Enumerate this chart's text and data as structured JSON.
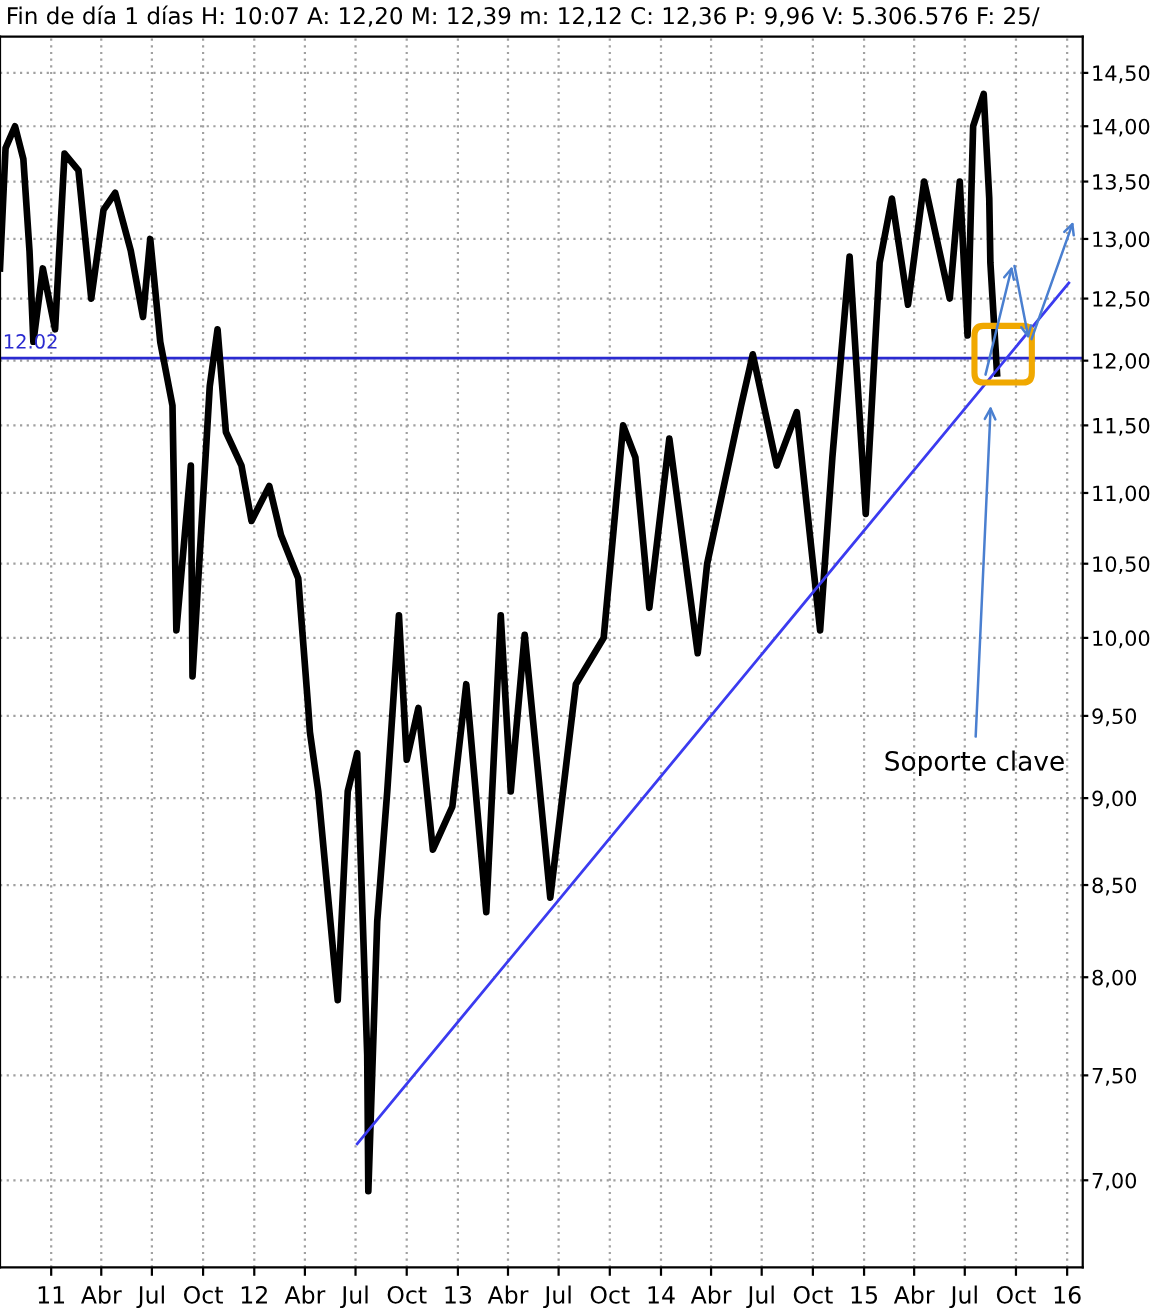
{
  "chart_data": {
    "type": "line",
    "title": "Fin de día 1 días H: 10:07 A: 12,20 M: 12,39 m: 12,12 C: 12,36 P: 9,96 V: 5.306.576 F: 25/",
    "series": [
      {
        "color": "#000000",
        "x": [
          "2010-10-01",
          "2010-10-11",
          "2010-10-28",
          "2010-11-12",
          "2010-11-23",
          "2010-11-30",
          "2010-12-17",
          "2011-01-08",
          "2011-01-25",
          "2011-02-19",
          "2011-03-14",
          "2011-04-05",
          "2011-04-26",
          "2011-05-24",
          "2011-06-15",
          "2011-06-28",
          "2011-07-16",
          "2011-08-07",
          "2011-08-14",
          "2011-09-09",
          "2011-09-12",
          "2011-10-13",
          "2011-10-27",
          "2011-11-11",
          "2011-12-09",
          "2011-12-27",
          "2012-01-28",
          "2012-02-18",
          "2012-03-20",
          "2012-04-07",
          "2012-04-10",
          "2012-04-25",
          "2012-05-30",
          "2012-06-17",
          "2012-07-04",
          "2012-07-22",
          "2012-07-24",
          "2012-08-09",
          "2012-08-27",
          "2012-09-17",
          "2012-10-01",
          "2012-10-22",
          "2012-11-17",
          "2012-12-22",
          "2013-01-16",
          "2013-02-21",
          "2013-03-19",
          "2013-04-06",
          "2013-05-01",
          "2013-06-16",
          "2013-08-01",
          "2013-09-20",
          "2013-10-25",
          "2013-11-16",
          "2013-12-11",
          "2014-01-16",
          "2014-03-08",
          "2014-03-25",
          "2014-05-25",
          "2014-06-15",
          "2014-07-28",
          "2014-09-02",
          "2014-10-14",
          "2014-11-05",
          "2014-12-06",
          "2015-01-04",
          "2015-01-29",
          "2015-02-20",
          "2015-03-21",
          "2015-04-19",
          "2015-06-04",
          "2015-06-22",
          "2015-07-06",
          "2015-07-16",
          "2015-08-04",
          "2015-08-14",
          "2015-08-16",
          "2015-08-28"
        ],
        "values": [
          12.75,
          13.8,
          14.0,
          13.7,
          12.9,
          12.15,
          12.75,
          12.25,
          13.75,
          13.6,
          12.5,
          13.25,
          13.4,
          12.9,
          12.35,
          13.0,
          12.15,
          11.65,
          10.05,
          11.2,
          9.75,
          11.8,
          12.25,
          11.45,
          11.2,
          10.8,
          11.05,
          10.7,
          10.4,
          9.55,
          9.4,
          9.04,
          7.88,
          9.04,
          9.27,
          7.6,
          6.95,
          8.3,
          9.04,
          10.15,
          9.23,
          9.55,
          8.7,
          8.95,
          9.7,
          8.35,
          10.15,
          9.04,
          10.02,
          8.43,
          9.7,
          10.0,
          11.5,
          11.26,
          10.2,
          11.4,
          9.9,
          10.5,
          11.65,
          12.05,
          11.2,
          11.6,
          10.05,
          11.26,
          12.85,
          10.85,
          12.8,
          13.35,
          12.45,
          13.5,
          12.5,
          13.5,
          12.2,
          14.0,
          14.3,
          13.35,
          12.8,
          11.9
        ]
      },
      {
        "color": "#3b3bf0",
        "x": [
          "2012-07-04",
          "2016-01-04"
        ],
        "values": [
          7.17,
          12.63
        ]
      }
    ],
    "log": "y",
    "ylim": [
      6.61,
      14.85
    ],
    "yticks": [
      {
        "value": 7.0,
        "label": "7,00"
      },
      {
        "value": 7.5,
        "label": "7,50"
      },
      {
        "value": 8.0,
        "label": "8,00"
      },
      {
        "value": 8.5,
        "label": "8,50"
      },
      {
        "value": 9.0,
        "label": "9,00"
      },
      {
        "value": 9.5,
        "label": "9,50"
      },
      {
        "value": 10.0,
        "label": "10,00"
      },
      {
        "value": 10.5,
        "label": "10,50"
      },
      {
        "value": 11.0,
        "label": "11,00"
      },
      {
        "value": 11.5,
        "label": "11,50"
      },
      {
        "value": 12.0,
        "label": "12,00"
      },
      {
        "value": 12.5,
        "label": "12,50"
      },
      {
        "value": 13.0,
        "label": "13,00"
      },
      {
        "value": 13.5,
        "label": "13,50"
      },
      {
        "value": 14.0,
        "label": "14,00"
      },
      {
        "value": 14.5,
        "label": "14,50"
      }
    ],
    "xlim": [
      "2010-10-01",
      "2016-01-29"
    ],
    "xticks": [
      {
        "value": "2011-01-01",
        "label": "11"
      },
      {
        "value": "2011-04-01",
        "label": "Abr"
      },
      {
        "value": "2011-07-01",
        "label": "Jul"
      },
      {
        "value": "2011-10-01",
        "label": "Oct"
      },
      {
        "value": "2012-01-01",
        "label": "12"
      },
      {
        "value": "2012-04-01",
        "label": "Abr"
      },
      {
        "value": "2012-07-01",
        "label": "Jul"
      },
      {
        "value": "2012-10-01",
        "label": "Oct"
      },
      {
        "value": "2013-01-01",
        "label": "13"
      },
      {
        "value": "2013-04-01",
        "label": "Abr"
      },
      {
        "value": "2013-07-01",
        "label": "Jul"
      },
      {
        "value": "2013-10-01",
        "label": "Oct"
      },
      {
        "value": "2014-01-01",
        "label": "14"
      },
      {
        "value": "2014-04-01",
        "label": "Abr"
      },
      {
        "value": "2014-07-01",
        "label": "Jul"
      },
      {
        "value": "2014-10-01",
        "label": "Oct"
      },
      {
        "value": "2015-01-01",
        "label": "15"
      },
      {
        "value": "2015-04-01",
        "label": "Abr"
      },
      {
        "value": "2015-07-01",
        "label": "Jul"
      },
      {
        "value": "2015-10-01",
        "label": "Oct"
      },
      {
        "value": "2016-01-01",
        "label": "16"
      }
    ],
    "ref_lines": [
      {
        "axis": "y",
        "value": 12.02,
        "label": "12.02",
        "color": "#2a2ad0"
      }
    ],
    "annotations": [
      "Soporte clave"
    ],
    "grid": true,
    "legend": false,
    "marker": "none",
    "line_style": "solid"
  }
}
